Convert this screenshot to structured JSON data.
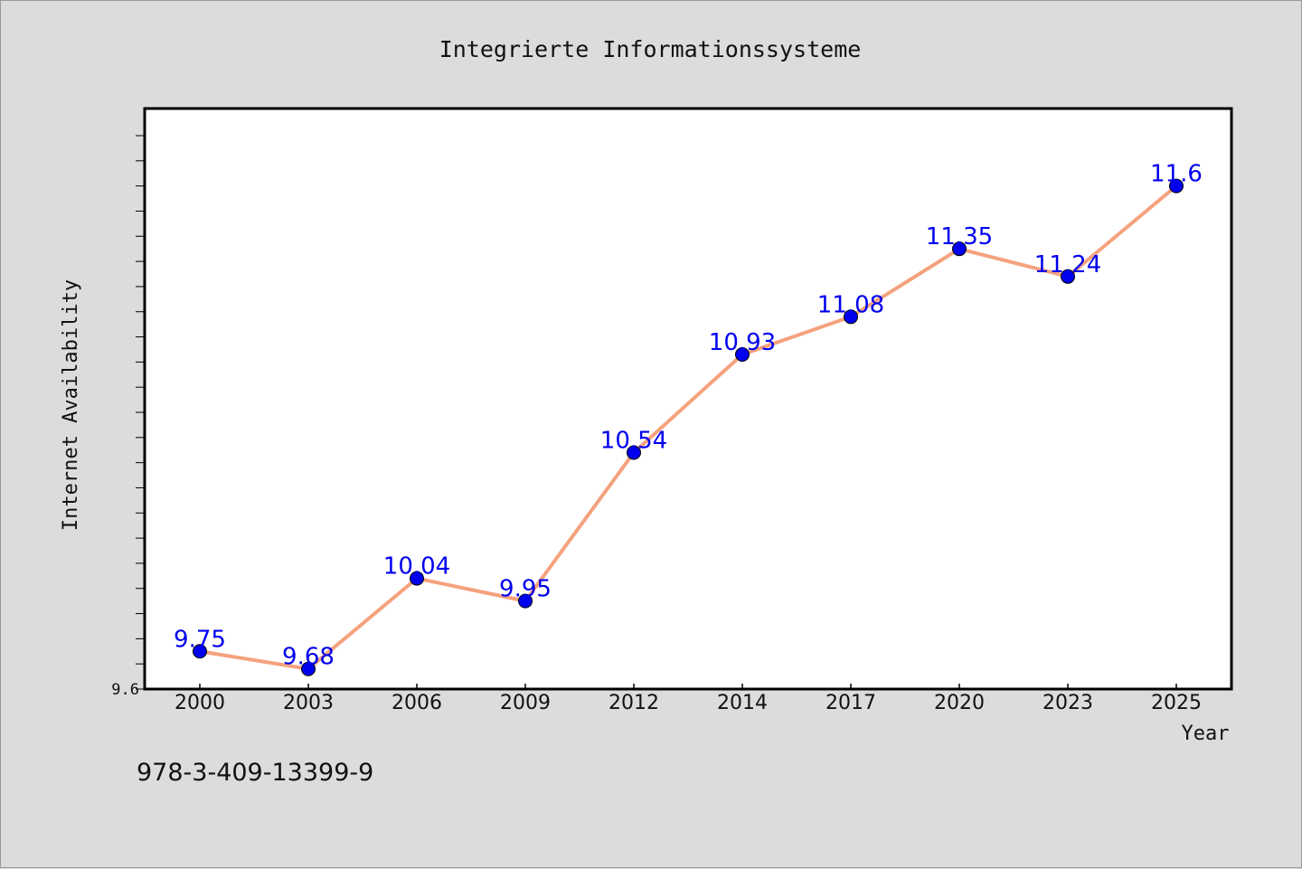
{
  "footer": {
    "code": "978-3-409-13399-9"
  },
  "colors": {
    "line": "#f4a27e",
    "marker": "#0000ee",
    "label": "#0000ee",
    "plot_bg": "#ffffff",
    "page_bg": "#dcdcdc"
  },
  "chart_data": {
    "type": "line",
    "title": "Integrierte Informationssysteme",
    "xlabel": "Year",
    "ylabel": "Internet Availability",
    "categories": [
      "2000",
      "2003",
      "2006",
      "2009",
      "2012",
      "2014",
      "2017",
      "2020",
      "2023",
      "2025"
    ],
    "series": [
      {
        "values": [
          9.75,
          9.68,
          10.04,
          9.95,
          10.54,
          10.93,
          11.08,
          11.35,
          11.24,
          11.6
        ]
      }
    ],
    "data_labels": [
      "9.75",
      "9.68",
      "10.04",
      "9.95",
      "10.54",
      "10.93",
      "11.08",
      "11.35",
      "11.24",
      "11.6"
    ],
    "ylim": [
      9.6,
      11.8
    ],
    "yticks": [
      {
        "value": 9.6,
        "label": "9.6"
      }
    ],
    "y_minor_step": 0.1,
    "grid": false,
    "legend": "none"
  }
}
